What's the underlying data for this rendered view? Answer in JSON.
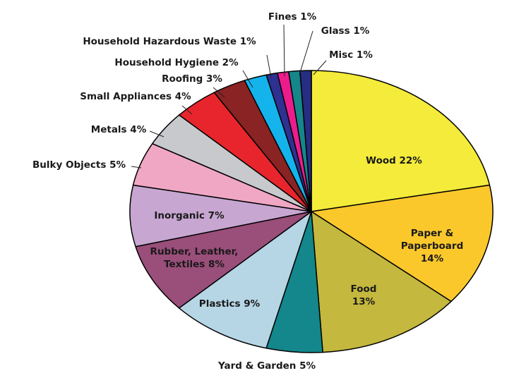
{
  "chart_data": {
    "type": "pie",
    "title": "",
    "legend": "none",
    "slices": [
      {
        "label": "Wood 22%",
        "value": 22,
        "color": "#f4eb3a"
      },
      {
        "label": "Paper & Paperboard 14%",
        "value": 14,
        "color": "#fbc82c"
      },
      {
        "label": "Food 13%",
        "value": 13,
        "color": "#c4b83e"
      },
      {
        "label": "Yard & Garden 5%",
        "value": 5,
        "color": "#13878b"
      },
      {
        "label": "Plastics 9%",
        "value": 9,
        "color": "#b6d6e6"
      },
      {
        "label": "Rubber, Leather, Textiles 8%",
        "value": 8,
        "color": "#9a4e7a"
      },
      {
        "label": "Inorganic 7%",
        "value": 7,
        "color": "#c7a6d1"
      },
      {
        "label": "Bulky Objects 5%",
        "value": 5,
        "color": "#f0a7c4"
      },
      {
        "label": "Metals 4%",
        "value": 4,
        "color": "#c7c9cc"
      },
      {
        "label": "Small Appliances 4%",
        "value": 4,
        "color": "#e8252c"
      },
      {
        "label": "Roofing 3%",
        "value": 3,
        "color": "#8a2323"
      },
      {
        "label": "Household Hygiene 2%",
        "value": 2,
        "color": "#14b3ec"
      },
      {
        "label": "Household Hazardous Waste 1%",
        "value": 1,
        "color": "#2e3191"
      },
      {
        "label": "Fines 1%",
        "value": 1,
        "color": "#ec1c8c"
      },
      {
        "label": "Glass 1%",
        "value": 1,
        "color": "#15868a"
      },
      {
        "label": "Misc 1%",
        "value": 1,
        "color": "#262d82"
      }
    ]
  }
}
